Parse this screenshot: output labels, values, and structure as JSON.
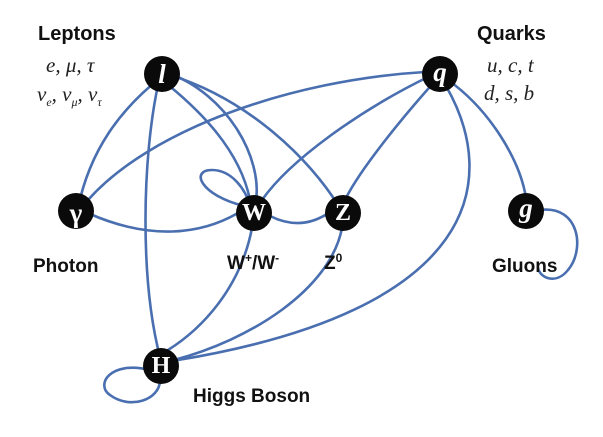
{
  "leptons": {
    "title": "Leptons",
    "list_line1": "e, μ, τ",
    "nu": "ν",
    "sub_e": "e",
    "sub_mu": "μ",
    "sub_tau": "τ",
    "sep": ", "
  },
  "quarks": {
    "title": "Quarks",
    "list_line1": "u, c, t",
    "list_line2": "d, s, b"
  },
  "nodes": {
    "lepton": {
      "symbol": "l"
    },
    "quark": {
      "symbol": "q"
    },
    "photon": {
      "symbol": "γ",
      "label": "Photon"
    },
    "w": {
      "symbol": "W",
      "label_base": "W",
      "label_sup1": "+",
      "label_mid": "/W",
      "label_sup2": "-"
    },
    "z": {
      "symbol": "Z",
      "label_base": "Z",
      "label_sup": "0"
    },
    "gluon": {
      "symbol": "g",
      "label": "Gluons"
    },
    "higgs": {
      "symbol": "H",
      "label": "Higgs Boson"
    }
  },
  "colors": {
    "edge": "#4a6fb0",
    "node": "#0a0a0a",
    "node_text": "#ffffff"
  }
}
